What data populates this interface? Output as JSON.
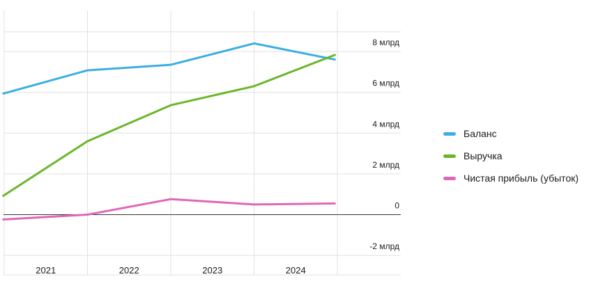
{
  "chart_data": {
    "type": "line",
    "x": [
      "2021",
      "2022",
      "2023",
      "2024"
    ],
    "y_ticks": [
      {
        "value": 8,
        "label": "8 млрд"
      },
      {
        "value": 6,
        "label": "6 млрд"
      },
      {
        "value": 4,
        "label": "4 млрд"
      },
      {
        "value": 2,
        "label": "2 млрд"
      },
      {
        "value": 0,
        "label": "0"
      },
      {
        "value": -2,
        "label": "-2 млрд"
      }
    ],
    "ylim": [
      -3,
      10
    ],
    "grid": true,
    "legend_position": "right",
    "series": [
      {
        "name": "Баланс",
        "color": "#3baee4",
        "points": [
          [
            2020.98,
            5.93
          ],
          [
            2022,
            7.08
          ],
          [
            2023,
            7.35
          ],
          [
            2024,
            8.4
          ],
          [
            2024.98,
            7.6
          ]
        ]
      },
      {
        "name": "Выручка",
        "color": "#6bb52b",
        "points": [
          [
            2020.98,
            0.9
          ],
          [
            2022,
            3.6
          ],
          [
            2023,
            5.37
          ],
          [
            2024,
            6.3
          ],
          [
            2024.98,
            7.85
          ]
        ]
      },
      {
        "name": "Чистая прибыль (убыток)",
        "color": "#e066b8",
        "points": [
          [
            2020.98,
            -0.24
          ],
          [
            2022,
            0
          ],
          [
            2023,
            0.76
          ],
          [
            2024,
            0.5
          ],
          [
            2024.98,
            0.55
          ]
        ]
      }
    ]
  }
}
